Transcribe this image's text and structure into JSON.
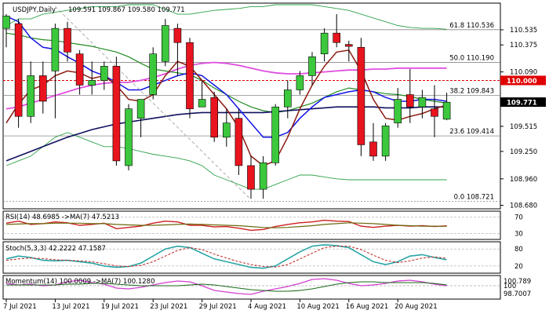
{
  "header": {
    "symbol": "USDJPY,Daily",
    "ohlc": "109.591 109.867 109.580 109.771"
  },
  "chart_data": [
    {
      "type": "candlestick",
      "title": "USDJPY,Daily",
      "ylim": [
        108.66,
        110.8
      ],
      "price_ticks": [
        "110.535",
        "110.375",
        "110.090",
        "109.515",
        "109.250",
        "108.960",
        "108.680"
      ],
      "current_price_label": "109.771",
      "current_price": 109.771,
      "resistance_label": "110.000",
      "resistance": 110.0,
      "fib_levels": [
        {
          "label": "61.8 110.536",
          "value": 110.536
        },
        {
          "label": "50.0 110.190",
          "value": 110.19
        },
        {
          "label": "38.2 109.843",
          "value": 109.843
        },
        {
          "label": "23.6 109.414",
          "value": 109.414
        },
        {
          "label": "0.0 108.721",
          "value": 108.721
        }
      ],
      "x_labels": [
        "7 Jul 2021",
        "13 Jul 2021",
        "19 Jul 2021",
        "23 Jul 2021",
        "29 Jul 2021",
        "4 Aug 2021",
        "10 Aug 2021",
        "16 Aug 2021",
        "20 Aug 2021"
      ],
      "x_label_index": [
        0,
        4,
        8,
        12,
        16,
        20,
        24,
        28,
        32
      ],
      "candles": [
        {
          "o": 110.55,
          "h": 110.7,
          "l": 110.35,
          "c": 110.68
        },
        {
          "o": 110.6,
          "h": 110.65,
          "l": 109.5,
          "c": 109.62
        },
        {
          "o": 109.62,
          "h": 110.2,
          "l": 109.55,
          "c": 110.05
        },
        {
          "o": 110.05,
          "h": 110.2,
          "l": 109.65,
          "c": 109.78
        },
        {
          "o": 110.1,
          "h": 110.6,
          "l": 109.6,
          "c": 110.55
        },
        {
          "o": 110.55,
          "h": 110.62,
          "l": 110.2,
          "c": 110.3
        },
        {
          "o": 110.28,
          "h": 110.32,
          "l": 109.85,
          "c": 109.95
        },
        {
          "o": 109.95,
          "h": 110.2,
          "l": 109.85,
          "c": 110.0
        },
        {
          "o": 110.0,
          "h": 110.2,
          "l": 109.9,
          "c": 110.15
        },
        {
          "o": 110.15,
          "h": 110.25,
          "l": 109.1,
          "c": 109.15
        },
        {
          "o": 109.1,
          "h": 109.75,
          "l": 109.05,
          "c": 109.7
        },
        {
          "o": 109.6,
          "h": 109.8,
          "l": 109.4,
          "c": 109.8
        },
        {
          "o": 109.85,
          "h": 110.35,
          "l": 109.8,
          "c": 110.28
        },
        {
          "o": 110.2,
          "h": 110.65,
          "l": 110.15,
          "c": 110.58
        },
        {
          "o": 110.55,
          "h": 110.6,
          "l": 110.05,
          "c": 110.4
        },
        {
          "o": 110.4,
          "h": 110.45,
          "l": 109.6,
          "c": 109.7
        },
        {
          "o": 109.72,
          "h": 110.0,
          "l": 109.72,
          "c": 109.8
        },
        {
          "o": 109.82,
          "h": 109.88,
          "l": 109.35,
          "c": 109.4
        },
        {
          "o": 109.4,
          "h": 109.7,
          "l": 109.3,
          "c": 109.55
        },
        {
          "o": 109.6,
          "h": 109.7,
          "l": 109.0,
          "c": 109.1
        },
        {
          "o": 109.1,
          "h": 109.2,
          "l": 108.75,
          "c": 108.85
        },
        {
          "o": 108.85,
          "h": 109.2,
          "l": 108.75,
          "c": 109.13
        },
        {
          "o": 109.13,
          "h": 109.75,
          "l": 109.1,
          "c": 109.72
        },
        {
          "o": 109.72,
          "h": 110.0,
          "l": 109.6,
          "c": 109.9
        },
        {
          "o": 109.9,
          "h": 110.1,
          "l": 109.85,
          "c": 110.05
        },
        {
          "o": 110.05,
          "h": 110.3,
          "l": 109.95,
          "c": 110.25
        },
        {
          "o": 110.28,
          "h": 110.55,
          "l": 110.2,
          "c": 110.5
        },
        {
          "o": 110.5,
          "h": 110.7,
          "l": 110.35,
          "c": 110.4
        },
        {
          "o": 110.38,
          "h": 110.42,
          "l": 110.2,
          "c": 110.36
        },
        {
          "o": 110.35,
          "h": 110.45,
          "l": 109.2,
          "c": 109.32
        },
        {
          "o": 109.35,
          "h": 109.55,
          "l": 109.15,
          "c": 109.2
        },
        {
          "o": 109.2,
          "h": 109.55,
          "l": 109.15,
          "c": 109.52
        },
        {
          "o": 109.55,
          "h": 109.92,
          "l": 109.5,
          "c": 109.8
        },
        {
          "o": 109.85,
          "h": 110.12,
          "l": 109.55,
          "c": 109.72
        },
        {
          "o": 109.72,
          "h": 109.9,
          "l": 109.6,
          "c": 109.82
        },
        {
          "o": 109.7,
          "h": 109.95,
          "l": 109.4,
          "c": 109.62
        },
        {
          "o": 109.59,
          "h": 109.87,
          "l": 109.58,
          "c": 109.77
        }
      ],
      "bands": {
        "upper": [
          110.58,
          110.65,
          110.65,
          110.7,
          110.72,
          110.74,
          110.76,
          110.78,
          110.78,
          110.78,
          110.8,
          110.8,
          110.8,
          110.75,
          110.7,
          110.7,
          110.72,
          110.74,
          110.75,
          110.76,
          110.78,
          110.78,
          110.8,
          110.8,
          110.8,
          110.8,
          110.78,
          110.76,
          110.74,
          110.7,
          110.66,
          110.62,
          110.58,
          110.56,
          110.55,
          110.55,
          110.54
        ],
        "lower": [
          109.1,
          109.15,
          109.2,
          109.3,
          109.4,
          109.45,
          109.4,
          109.35,
          109.3,
          109.3,
          109.28,
          109.25,
          109.22,
          109.2,
          109.18,
          109.15,
          109.1,
          109.0,
          108.95,
          108.9,
          108.85,
          108.85,
          108.9,
          108.95,
          109.0,
          109.0,
          108.98,
          108.96,
          108.95,
          108.95,
          108.95,
          108.95,
          108.95,
          108.95,
          108.95,
          108.95,
          108.95
        ]
      },
      "ma_red": [
        109.55,
        109.75,
        109.9,
        109.95,
        110.05,
        110.1,
        110.08,
        110.02,
        110.05,
        109.95,
        109.8,
        109.78,
        109.85,
        110.05,
        110.2,
        110.15,
        110.0,
        109.85,
        109.7,
        109.5,
        109.2,
        109.1,
        109.15,
        109.4,
        109.7,
        109.95,
        110.15,
        110.3,
        110.32,
        110.1,
        109.8,
        109.6,
        109.58,
        109.62,
        109.65,
        109.7,
        109.74
      ],
      "ma_blue": [
        110.68,
        110.62,
        110.45,
        110.35,
        110.33,
        110.25,
        110.18,
        110.1,
        110.05,
        109.98,
        109.9,
        109.9,
        109.95,
        110.0,
        110.05,
        110.08,
        110.05,
        109.95,
        109.85,
        109.7,
        109.55,
        109.4,
        109.4,
        109.45,
        109.6,
        109.72,
        109.82,
        109.85,
        109.88,
        109.9,
        109.88,
        109.82,
        109.78,
        109.78,
        109.8,
        109.8,
        109.78
      ],
      "ma_green": [
        110.5,
        110.48,
        110.45,
        110.43,
        110.42,
        110.4,
        110.38,
        110.36,
        110.33,
        110.3,
        110.25,
        110.18,
        110.12,
        110.1,
        110.08,
        110.06,
        110.0,
        109.92,
        109.85,
        109.78,
        109.72,
        109.68,
        109.66,
        109.68,
        109.72,
        109.76,
        109.82,
        109.88,
        109.92,
        109.9,
        109.88,
        109.86,
        109.85,
        109.83,
        109.8,
        109.78,
        109.76
      ],
      "ma_magenta": [
        109.7,
        109.72,
        109.76,
        109.8,
        109.84,
        109.88,
        109.92,
        109.95,
        109.97,
        109.98,
        109.98,
        110.0,
        110.03,
        110.07,
        110.12,
        110.16,
        110.18,
        110.19,
        110.18,
        110.16,
        110.13,
        110.1,
        110.08,
        110.07,
        110.07,
        110.08,
        110.09,
        110.1,
        110.11,
        110.11,
        110.12,
        110.12,
        110.13,
        110.13,
        110.13,
        110.13,
        110.13
      ],
      "ma_navy": [
        109.15,
        109.2,
        109.25,
        109.3,
        109.35,
        109.4,
        109.44,
        109.48,
        109.51,
        109.54,
        109.56,
        109.58,
        109.6,
        109.62,
        109.64,
        109.65,
        109.66,
        109.66,
        109.66,
        109.66,
        109.66,
        109.66,
        109.67,
        109.68,
        109.69,
        109.7,
        109.71,
        109.72,
        109.72,
        109.72,
        109.72,
        109.71,
        109.71,
        109.71,
        109.72,
        109.72,
        109.72
      ],
      "trendline": {
        "from": {
          "index": 4,
          "value": 110.78
        },
        "to": {
          "index": 20,
          "value": 108.74
        }
      }
    },
    {
      "type": "line",
      "title": "RSI(14) 48.6985 ->MA(7) 47.5213",
      "ylim": [
        20,
        80
      ],
      "ref_levels": [
        70,
        30
      ],
      "y_ticks": [
        "70",
        "30"
      ],
      "series": [
        {
          "name": "RSI(14)",
          "values": [
            55,
            60,
            52,
            54,
            58,
            56,
            50,
            52,
            55,
            42,
            45,
            48,
            55,
            60,
            58,
            50,
            50,
            46,
            47,
            43,
            38,
            40,
            47,
            52,
            56,
            58,
            62,
            60,
            59,
            48,
            45,
            48,
            50,
            48,
            49,
            47,
            48.7
          ]
        },
        {
          "name": "MA(7)",
          "values": [
            52,
            53,
            54,
            54,
            55,
            55,
            55,
            54,
            54,
            52,
            51,
            50,
            50,
            51,
            52,
            53,
            52,
            51,
            50,
            49,
            47,
            45,
            44,
            45,
            47,
            49,
            52,
            54,
            56,
            55,
            54,
            52,
            50,
            49,
            48,
            48,
            47.5
          ]
        }
      ]
    },
    {
      "type": "line",
      "title": "Stoch(5,3,3) 42.2222 47.1587",
      "ylim": [
        0,
        100
      ],
      "ref_levels": [
        80,
        20
      ],
      "y_ticks": [
        "80",
        "20"
      ],
      "series": [
        {
          "name": "Stoch(5,3,3)",
          "values": [
            45,
            55,
            50,
            40,
            38,
            40,
            35,
            30,
            20,
            15,
            18,
            30,
            55,
            80,
            90,
            85,
            65,
            45,
            35,
            25,
            15,
            12,
            20,
            45,
            70,
            90,
            95,
            92,
            85,
            60,
            35,
            25,
            35,
            55,
            60,
            50,
            42
          ]
        },
        {
          "name": "Signal",
          "values": [
            40,
            45,
            48,
            46,
            42,
            40,
            38,
            35,
            28,
            20,
            18,
            22,
            35,
            55,
            75,
            85,
            78,
            62,
            48,
            35,
            25,
            18,
            16,
            25,
            45,
            65,
            85,
            90,
            90,
            78,
            58,
            40,
            32,
            38,
            48,
            52,
            47
          ]
        }
      ]
    },
    {
      "type": "line",
      "title": "Momentum(14) 100.0009 ->MA(7) 100.1280",
      "y_ticks": [
        "100.789",
        "100",
        "98.7007"
      ],
      "ref_levels": [
        100
      ],
      "ylim": [
        98.5,
        101.1
      ],
      "series": [
        {
          "name": "Momentum(14)",
          "values": [
            100.3,
            100.1,
            100.2,
            100.0,
            100.1,
            100.5,
            100.7,
            100.4,
            100.2,
            99.7,
            99.6,
            99.8,
            100.1,
            100.4,
            100.6,
            100.5,
            100.0,
            99.4,
            99.2,
            99.0,
            98.9,
            99.3,
            99.6,
            99.9,
            100.3,
            100.8,
            100.9,
            100.7,
            100.3,
            100.0,
            100.1,
            100.3,
            100.6,
            100.7,
            100.5,
            100.2,
            100.0
          ]
        },
        {
          "name": "MA(7)",
          "values": [
            100.1,
            100.1,
            100.1,
            100.1,
            100.1,
            100.2,
            100.2,
            100.3,
            100.3,
            100.2,
            100.1,
            100.0,
            100.0,
            100.0,
            100.0,
            100.1,
            100.2,
            100.1,
            99.9,
            99.7,
            99.5,
            99.4,
            99.3,
            99.3,
            99.4,
            99.6,
            99.9,
            100.2,
            100.4,
            100.5,
            100.5,
            100.4,
            100.4,
            100.4,
            100.4,
            100.3,
            100.1
          ]
        }
      ]
    }
  ],
  "colors": {
    "bull": "#3cc83c",
    "bear": "#e8141e",
    "ma_red": "#8b1a10",
    "ma_blue": "#1414e6",
    "ma_green": "#228b22",
    "ma_magenta": "#e04ee0",
    "ma_navy": "#101060",
    "bands": "#2fa24a",
    "current_label_bg": "#000000",
    "resistance": "#e00000",
    "fib": "#888888",
    "rsi": "#cc2020",
    "rsi_ma": "#6a6a10",
    "stoch_main": "#2aa5a5",
    "stoch_signal": "#c02020",
    "momentum": "#d040d0",
    "momentum_ma": "#1a6a1a"
  }
}
